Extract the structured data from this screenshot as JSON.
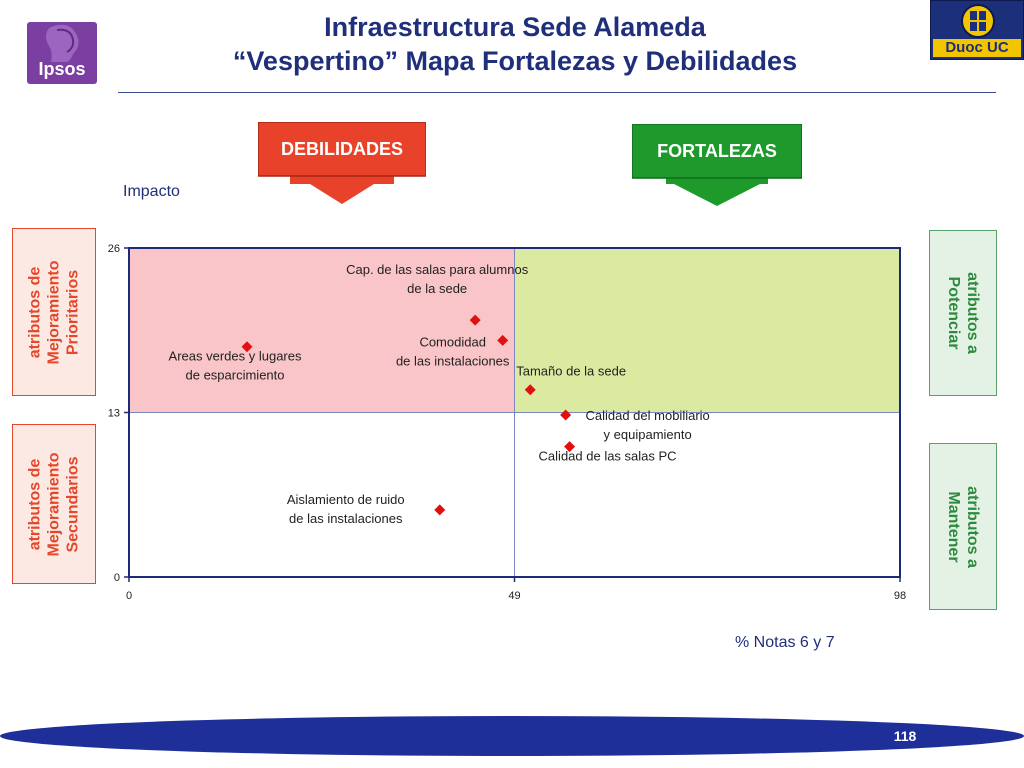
{
  "title": {
    "line1": "Infraestructura Sede Alameda",
    "line2": "“Vespertino” Mapa Fortalezas y Debilidades"
  },
  "logos": {
    "ipsos": "Ipsos",
    "duoc": "Duoc UC"
  },
  "banners": {
    "debilidades": {
      "label": "DEBILIDADES",
      "color": "#e8432a"
    },
    "fortalezas": {
      "label": "FORTALEZAS",
      "color": "#1e9a2c"
    }
  },
  "side_labels": {
    "left_top": "atributos de\nMejoramiento\nPrioritarios",
    "left_bottom": "atributos de\nMejoramiento\nSecundarios",
    "right_top": "atributos a\nPotenciar",
    "right_bottom": "atributos a\nMantener"
  },
  "page_number": "118",
  "colors": {
    "weakness_quadrant": "#f9c5c8",
    "strength_quadrant": "#dbeaa0",
    "marker": "#e01010",
    "axis": "#1c2a78",
    "page_band": "#1f2f9a"
  },
  "chart_data": {
    "type": "scatter",
    "ylabel": "Impacto",
    "xlabel": "% Notas 6 y 7",
    "xlim": [
      0,
      98
    ],
    "ylim": [
      0,
      26
    ],
    "x_ticks": [
      "0",
      "49",
      "98"
    ],
    "y_ticks": [
      "0",
      "13",
      "26"
    ],
    "x_divider": 49,
    "y_divider": 13,
    "points": [
      {
        "label": "Areas verdes y lugares de esparcimiento",
        "x": 15,
        "y": 18.2
      },
      {
        "label": "Cap. de las salas para alumnos de la sede",
        "x": 44,
        "y": 20.3
      },
      {
        "label": "Comodidad de las instalaciones",
        "x": 47.5,
        "y": 18.7
      },
      {
        "label": "Tamaño de la sede",
        "x": 51,
        "y": 14.8
      },
      {
        "label": "Calidad del mobiliario y equipamiento",
        "x": 55.5,
        "y": 12.8
      },
      {
        "label": "Calidad de las salas PC",
        "x": 56,
        "y": 10.3
      },
      {
        "label": "Aislamiento de ruido de las instalaciones",
        "x": 39.5,
        "y": 5.3
      }
    ]
  }
}
